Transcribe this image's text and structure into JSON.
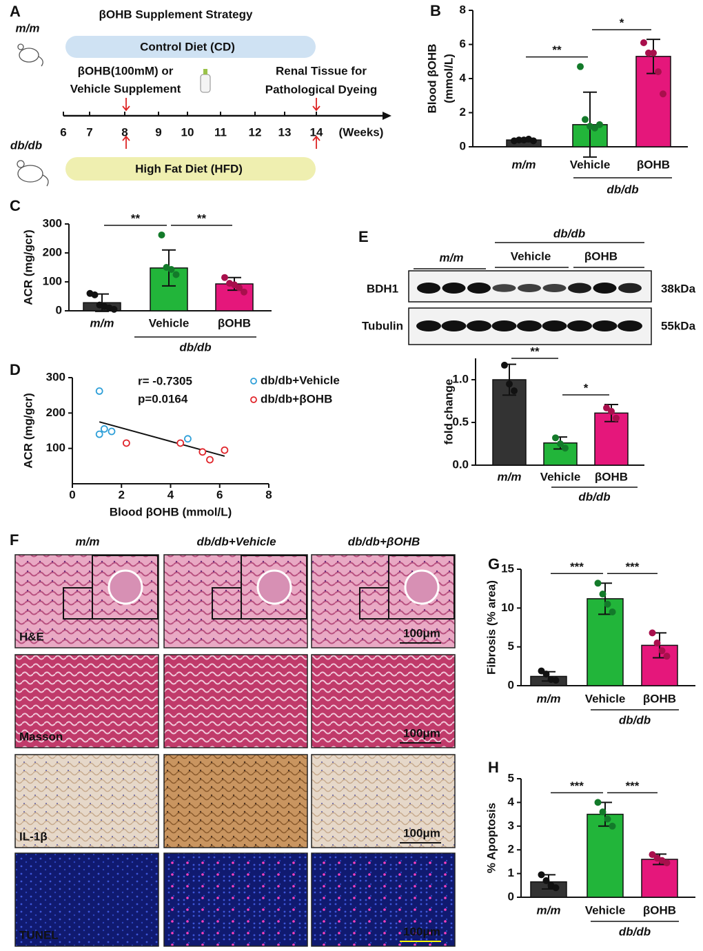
{
  "panel_a": {
    "panel": "A",
    "title": "βOHB Supplement Strategy",
    "group_top": "m/m",
    "group_bottom": "db/db",
    "diet_top": "Control Diet (CD)",
    "diet_bottom": "High Fat Diet (HFD)",
    "supplement": [
      "βOHB(100mM) or",
      "Vehicle Supplement"
    ],
    "tissue": [
      "Renal Tissue for",
      "Pathological Dyeing"
    ],
    "weeks": [
      6,
      7,
      8,
      9,
      10,
      11,
      12,
      13,
      14
    ],
    "weeks_unit": "(Weeks)"
  },
  "blot": {
    "group": "db/db",
    "lanes": [
      "m/m",
      "Vehicle",
      "βOHB"
    ],
    "rows": [
      "BDH1",
      "Tubulin"
    ],
    "sizes": [
      "38kDa",
      "55kDa"
    ]
  },
  "panel_f": {
    "panel": "F",
    "columns": [
      "m/m",
      "db/db+Vehicle",
      "db/db+βOHB"
    ],
    "rows": [
      "H&E",
      "Masson",
      "IL-1β",
      "TUNEL"
    ],
    "scale_bar": "100μm"
  },
  "chart_data": [
    {
      "type": "bar",
      "panel": "B",
      "ylabel": [
        "Blood βOHB",
        "(mmol/L)"
      ],
      "categories": [
        "m/m",
        "Vehicle",
        "βOHB"
      ],
      "group_label": "db/db",
      "values": [
        0.4,
        1.3,
        5.3
      ],
      "errors": [
        0.1,
        1.9,
        1.0
      ],
      "points": [
        [
          0.35,
          0.4,
          0.4,
          0.45,
          0.35
        ],
        [
          4.7,
          1.6,
          1.2,
          1.1,
          1.3
        ],
        [
          6.1,
          5.5,
          5.5,
          4.4,
          3.1
        ]
      ],
      "colors": [
        "#333333",
        "#22b53a",
        "#e5177b"
      ],
      "point_colors": [
        "#111111",
        "#137a2a",
        "#a80f4c"
      ],
      "ylim": [
        0,
        8
      ],
      "yticks": [
        0,
        2,
        4,
        6,
        8
      ],
      "significance": [
        "**",
        "*"
      ]
    },
    {
      "type": "bar",
      "panel": "C",
      "ylabel": [
        "ACR (mg/gcr)"
      ],
      "categories": [
        "m/m",
        "Vehicle",
        "βOHB"
      ],
      "group_label": "db/db",
      "values": [
        28,
        148,
        93
      ],
      "errors": [
        30,
        62,
        22
      ],
      "points": [
        [
          60,
          55,
          20,
          15,
          10,
          5
        ],
        [
          262,
          150,
          143,
          125
        ],
        [
          115,
          95,
          90,
          80,
          65
        ]
      ],
      "colors": [
        "#333333",
        "#22b53a",
        "#e5177b"
      ],
      "point_colors": [
        "#111111",
        "#137a2a",
        "#a80f4c"
      ],
      "ylim": [
        0,
        300
      ],
      "yticks": [
        0,
        100,
        200,
        300
      ],
      "significance": [
        "**",
        "**"
      ]
    },
    {
      "type": "scatter",
      "panel": "D",
      "xlabel": "Blood βOHB (mmol/L)",
      "ylabel": [
        "ACR (mg/gcr)"
      ],
      "annotations": [
        "r= -0.7305",
        "p=0.0164"
      ],
      "series": [
        {
          "name": "db/db+Vehicle",
          "color": "#2e9fd8",
          "x": [
            1.1,
            1.3,
            1.6,
            4.7,
            1.1
          ],
          "y": [
            262,
            155,
            148,
            127,
            140
          ]
        },
        {
          "name": "db/db+βOHB",
          "color": "#e0242a",
          "x": [
            2.2,
            4.4,
            5.3,
            5.6,
            6.2
          ],
          "y": [
            115,
            115,
            90,
            68,
            95
          ]
        }
      ],
      "fit_line": {
        "x": [
          1.1,
          6.2
        ],
        "y": [
          175,
          78
        ]
      },
      "xlim": [
        0,
        8
      ],
      "xticks": [
        0,
        2,
        4,
        6,
        8
      ],
      "ylim": [
        0,
        300
      ],
      "yticks": [
        100,
        200,
        300
      ]
    },
    {
      "type": "bar",
      "panel": "E",
      "ylabel": [
        "fold change"
      ],
      "categories": [
        "m/m",
        "Vehicle",
        "βOHB"
      ],
      "group_label": "db/db",
      "values": [
        1.0,
        0.26,
        0.61
      ],
      "errors": [
        0.18,
        0.07,
        0.1
      ],
      "points": [
        [
          1.17,
          0.95,
          0.87
        ],
        [
          0.32,
          0.25,
          0.2
        ],
        [
          0.67,
          0.63,
          0.55
        ]
      ],
      "colors": [
        "#333333",
        "#22b53a",
        "#e5177b"
      ],
      "point_colors": [
        "#111111",
        "#137a2a",
        "#a80f4c"
      ],
      "ylim": [
        0,
        1.25
      ],
      "yticks": [
        {
          "value": 0,
          "label": "0.0"
        },
        {
          "value": 0.5,
          "label": "0.5"
        },
        {
          "value": 1,
          "label": "1.0"
        }
      ],
      "significance": [
        "**",
        "*"
      ]
    },
    {
      "type": "bar",
      "panel": "G",
      "ylabel": [
        "Fibrosis (% area)"
      ],
      "categories": [
        "m/m",
        "Vehicle",
        "βOHB"
      ],
      "group_label": "db/db",
      "values": [
        1.2,
        11.2,
        5.2
      ],
      "errors": [
        0.6,
        2.0,
        1.6
      ],
      "points": [
        [
          1.9,
          1.5,
          0.8,
          0.7
        ],
        [
          13.2,
          11.8,
          10.5,
          9.5
        ],
        [
          6.8,
          5.5,
          4.5,
          3.8
        ]
      ],
      "colors": [
        "#333333",
        "#22b53a",
        "#e5177b"
      ],
      "point_colors": [
        "#111111",
        "#137a2a",
        "#a80f4c"
      ],
      "ylim": [
        0,
        15
      ],
      "yticks": [
        0,
        5,
        10,
        15
      ],
      "significance": [
        "***",
        "***"
      ]
    },
    {
      "type": "bar",
      "panel": "H",
      "ylabel": [
        "% Apoptosis"
      ],
      "categories": [
        "m/m",
        "Vehicle",
        "βOHB"
      ],
      "group_label": "db/db",
      "values": [
        0.65,
        3.5,
        1.6
      ],
      "errors": [
        0.3,
        0.5,
        0.22
      ],
      "points": [
        [
          0.95,
          0.7,
          0.5,
          0.4
        ],
        [
          4.0,
          3.6,
          3.3,
          3.0
        ],
        [
          1.8,
          1.65,
          1.55,
          1.45
        ]
      ],
      "colors": [
        "#333333",
        "#22b53a",
        "#e5177b"
      ],
      "point_colors": [
        "#111111",
        "#137a2a",
        "#a80f4c"
      ],
      "ylim": [
        0,
        5
      ],
      "yticks": [
        0,
        1,
        2,
        3,
        4,
        5
      ],
      "significance": [
        "***",
        "***"
      ]
    }
  ]
}
